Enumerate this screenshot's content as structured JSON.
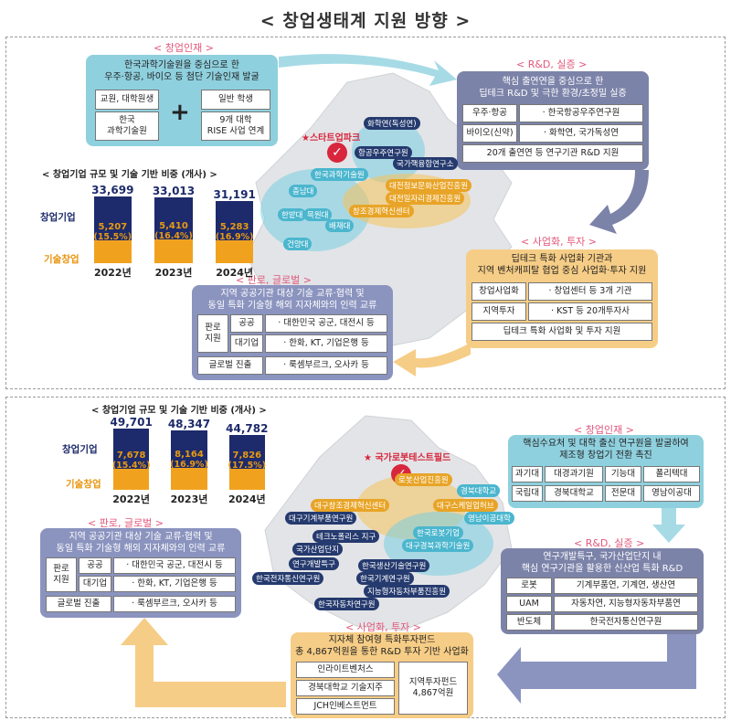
{
  "title": "< 창업생태계 지원 방향 >",
  "top": {
    "talent": {
      "section": "< 창업인재 >",
      "header": "한국과학기술원을 중심으로 한\n우주·항공, 바이오 등 첨단 기술인재 발굴",
      "left_a": "교원, 대학원생",
      "left_b": "한국\n과학기술원",
      "plus": "+",
      "right_a": "일반 학생",
      "right_b": "9개 대학\nRISE 사업 연계"
    },
    "rd": {
      "section": "< R&D, 실증 >",
      "header": "핵심 출연연을 중심으로 한\n딥테크 R&D 및 극한 환경/초정밀 실증",
      "rows": [
        {
          "k": "우주·항공",
          "v": "· 한국항공우주연구원"
        },
        {
          "k": "바이오(신약)",
          "v": "· 화학연, 국가독성연"
        }
      ],
      "footer": "20개 출연연 등 연구기관 R&D 지원"
    },
    "invest": {
      "section": "< 사업화, 투자 >",
      "header": "딥테크 특화 사업화 기관과\n지역 벤처캐피탈 협업 중심 사업화·투자 지원",
      "rows": [
        {
          "k": "창업사업화",
          "v": "· 창업센터 등 3개 기관"
        },
        {
          "k": "지역투자",
          "v": "· KST 등 20개투자사"
        }
      ],
      "footer": "딥테크 특화 사업화 및 투자 지원"
    },
    "market": {
      "section": "< 판로, 글로벌 >",
      "header": "지역 공공기관 대상 기술 교류·협력 및\n동일 특화 기술형 해외 지자체와의 인력 교류",
      "group": "판로\n지원",
      "rows": [
        {
          "k": "공공",
          "v": "· 대한민국 공군, 대전시 등"
        },
        {
          "k": "대기업",
          "v": "· 한화, KT, 기업은행 등"
        }
      ],
      "global_k": "글로벌 진출",
      "global_v": "· 룩셈부르크, 오사카 등"
    },
    "chart_title": "< 창업기업 규모 및 기술 기반 비중 (개사) >",
    "map": {
      "star": "★스타트업파크",
      "labels": [
        "화학연(독성연)",
        "항공우주연구원",
        "국가핵융합연구소",
        "한국과학기술원",
        "대전정보문화산업진흥원",
        "대전일자리경제진흥원",
        "창조경제혁신센터",
        "충남대",
        "한밭대",
        "목원대",
        "배재대",
        "건양대"
      ]
    }
  },
  "bottom": {
    "chart_title": "< 창업기업 규모 및 기술 기반 비중 (개사) >",
    "talent": {
      "section": "< 창업인재 >",
      "header": "핵심수요처 및 대학 출신 연구원을 발굴하여\n제조형 창업기 전환 촉진",
      "cells": [
        "과기대",
        "대경과기원",
        "기능대",
        "폴리텍대",
        "국립대",
        "경북대학교",
        "전문대",
        "영남이공대"
      ]
    },
    "rd": {
      "section": "< R&D, 실증 >",
      "header": "연구개발특구, 국가산업단지 내\n핵심 연구기관을 활용한 신산업 특화 R&D",
      "rows": [
        {
          "k": "로봇",
          "v": "기계부품연, 기계연, 생산연"
        },
        {
          "k": "UAM",
          "v": "자동차연, 지능형자동차부품연"
        },
        {
          "k": "반도체",
          "v": "한국전자통신연구원"
        }
      ]
    },
    "invest": {
      "section": "< 사업화, 투자 >",
      "header": "지자체 참여형 특화투자펀드\n총 4,867억원을 통한 R&D 투자 기반 사업화",
      "list": [
        "인라이트벤처스",
        "경북대학교 기술지주",
        "JCH인베스트먼트"
      ],
      "fund": "지역투자펀드\n4,867억원"
    },
    "market": {
      "section": "< 판로, 글로벌 >",
      "header": "지역 공공기관 대상 기술 교류·협력 및\n동일 특화 기술형 해외 지자체와의 인력 교류",
      "group": "판로\n지원",
      "rows": [
        {
          "k": "공공",
          "v": "· 대한민국 공군, 대전시 등"
        },
        {
          "k": "대기업",
          "v": "· 한화, KT, 기업은행 등"
        }
      ],
      "global_k": "글로벌 진출",
      "global_v": "· 룩셈부르크, 오사카 등"
    },
    "map": {
      "star": "★ 국가로봇테스트필드",
      "labels": [
        "로봇산업진흥원",
        "경북대학교",
        "대구창조경제혁신센터",
        "대구스케일업허브",
        "대구기계부품연구원",
        "영남이공대학",
        "테크노폴리스 지구",
        "한국로봇기업",
        "국가산업단지",
        "대구경북과학기술원",
        "연구개발특구",
        "한국생산기술연구원",
        "한국전자통신연구원",
        "한국기계연구원",
        "지능형자동차부품진흥원",
        "한국자동차연구원"
      ]
    }
  },
  "chart_data": [
    {
      "type": "bar",
      "title": "< 창업기업 규모 및 기술 기반 비중 (개사) >",
      "categories": [
        "2022년",
        "2023년",
        "2024년"
      ],
      "series": [
        {
          "name": "창업기업",
          "values": [
            33699,
            33013,
            31191
          ]
        },
        {
          "name": "기술창업",
          "values": [
            5207,
            5410,
            5283
          ]
        }
      ],
      "percent_labels": [
        "(15.5%)",
        "(16.4%)",
        "(16.9%)"
      ],
      "value_labels": [
        "33,699",
        "33,013",
        "31,191"
      ],
      "tech_labels": [
        "5,207",
        "5,410",
        "5,283"
      ]
    },
    {
      "type": "bar",
      "title": "< 창업기업 규모 및 기술 기반 비중 (개사) >",
      "categories": [
        "2022년",
        "2023년",
        "2024년"
      ],
      "series": [
        {
          "name": "창업기업",
          "values": [
            49701,
            48347,
            44782
          ]
        },
        {
          "name": "기술창업",
          "values": [
            7678,
            8164,
            7826
          ]
        }
      ],
      "percent_labels": [
        "(15.4%)",
        "(16.9%)",
        "(17.5%)"
      ],
      "value_labels": [
        "49,701",
        "48,347",
        "44,782"
      ],
      "tech_labels": [
        "7,678",
        "8,164",
        "7,826"
      ]
    }
  ]
}
